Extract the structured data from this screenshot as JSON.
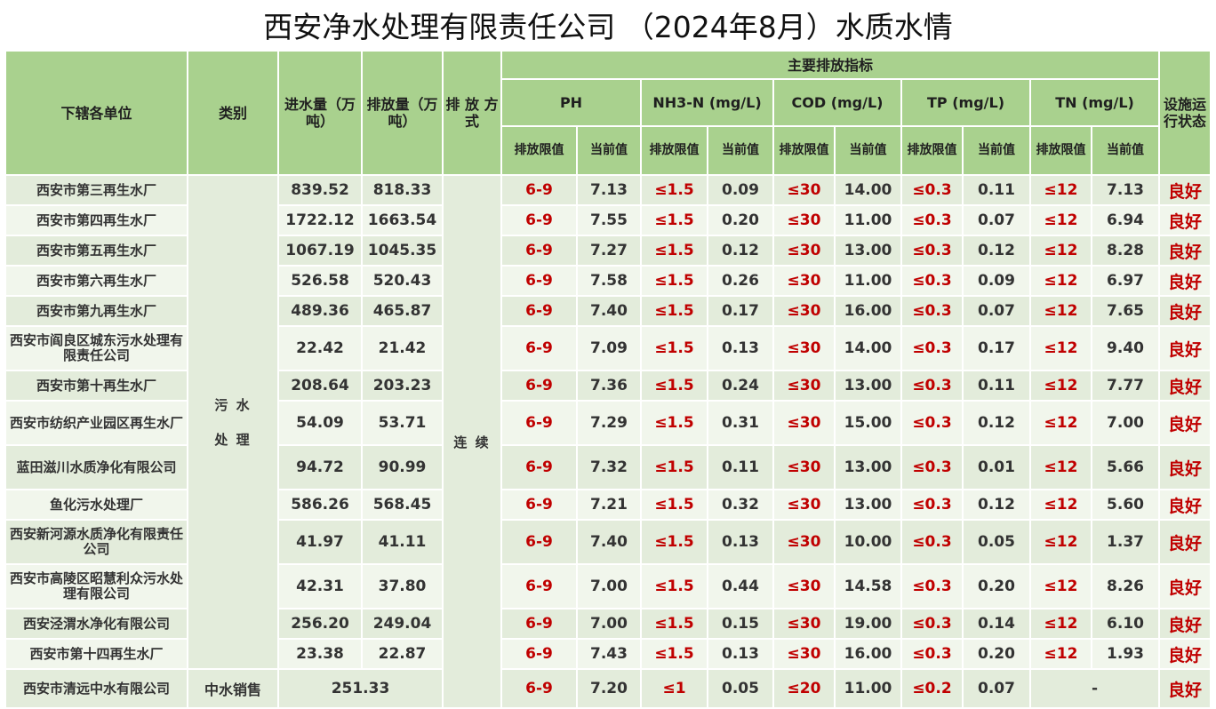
{
  "title": "西安净水处理有限责任公司 （2024年8月）水质水情",
  "headers": {
    "unit": "下辖各单位",
    "category": "类别",
    "inflow": "进水量（万吨）",
    "outflow": "排放量（万吨）",
    "method": "排 放 方 式",
    "main_indicators": "主要排放指标",
    "status": "设施运行状态",
    "ph": "PH",
    "nh3n": "NH3-N (mg/L)",
    "cod": "COD (mg/L)",
    "tp": "TP (mg/L)",
    "tn": "TN (mg/L)",
    "limit_ph": "排放限值",
    "current_ph": "当前值",
    "limit": "排放限值",
    "current": "当前值"
  },
  "category_sewage": "污 水\n\n处 理",
  "method_continuous": "连 续",
  "rows": [
    {
      "name": "西安市第三再生水厂",
      "inflow": "839.52",
      "outflow": "818.33",
      "ph_lim": "6-9",
      "ph": "7.13",
      "nh3_lim": "≤1.5",
      "nh3": "0.09",
      "cod_lim": "≤30",
      "cod": "14.00",
      "tp_lim": "≤0.3",
      "tp": "0.11",
      "tn_lim": "≤12",
      "tn": "7.13",
      "status": "良好"
    },
    {
      "name": "西安市第四再生水厂",
      "inflow": "1722.12",
      "outflow": "1663.54",
      "ph_lim": "6-9",
      "ph": "7.55",
      "nh3_lim": "≤1.5",
      "nh3": "0.20",
      "cod_lim": "≤30",
      "cod": "11.00",
      "tp_lim": "≤0.3",
      "tp": "0.07",
      "tn_lim": "≤12",
      "tn": "6.94",
      "status": "良好"
    },
    {
      "name": "西安市第五再生水厂",
      "inflow": "1067.19",
      "outflow": "1045.35",
      "ph_lim": "6-9",
      "ph": "7.27",
      "nh3_lim": "≤1.5",
      "nh3": "0.12",
      "cod_lim": "≤30",
      "cod": "13.00",
      "tp_lim": "≤0.3",
      "tp": "0.12",
      "tn_lim": "≤12",
      "tn": "8.28",
      "status": "良好"
    },
    {
      "name": "西安市第六再生水厂",
      "inflow": "526.58",
      "outflow": "520.43",
      "ph_lim": "6-9",
      "ph": "7.58",
      "nh3_lim": "≤1.5",
      "nh3": "0.26",
      "cod_lim": "≤30",
      "cod": "11.00",
      "tp_lim": "≤0.3",
      "tp": "0.09",
      "tn_lim": "≤12",
      "tn": "6.97",
      "status": "良好"
    },
    {
      "name": "西安市第九再生水厂",
      "inflow": "489.36",
      "outflow": "465.87",
      "ph_lim": "6-9",
      "ph": "7.40",
      "nh3_lim": "≤1.5",
      "nh3": "0.17",
      "cod_lim": "≤30",
      "cod": "16.00",
      "tp_lim": "≤0.3",
      "tp": "0.07",
      "tn_lim": "≤12",
      "tn": "7.65",
      "status": "良好"
    },
    {
      "name": "西安市阎良区城东污水处理有限责任公司",
      "inflow": "22.42",
      "outflow": "21.42",
      "ph_lim": "6-9",
      "ph": "7.09",
      "nh3_lim": "≤1.5",
      "nh3": "0.13",
      "cod_lim": "≤30",
      "cod": "14.00",
      "tp_lim": "≤0.3",
      "tp": "0.17",
      "tn_lim": "≤12",
      "tn": "9.40",
      "status": "良好"
    },
    {
      "name": "西安市第十再生水厂",
      "inflow": "208.64",
      "outflow": "203.23",
      "ph_lim": "6-9",
      "ph": "7.36",
      "nh3_lim": "≤1.5",
      "nh3": "0.24",
      "cod_lim": "≤30",
      "cod": "13.00",
      "tp_lim": "≤0.3",
      "tp": "0.11",
      "tn_lim": "≤12",
      "tn": "7.77",
      "status": "良好"
    },
    {
      "name": "西安市纺织产业园区再生水厂",
      "inflow": "54.09",
      "outflow": "53.71",
      "ph_lim": "6-9",
      "ph": "7.29",
      "nh3_lim": "≤1.5",
      "nh3": "0.31",
      "cod_lim": "≤30",
      "cod": "15.00",
      "tp_lim": "≤0.3",
      "tp": "0.12",
      "tn_lim": "≤12",
      "tn": "7.00",
      "status": "良好"
    },
    {
      "name": "蓝田滋川水质净化有限公司",
      "inflow": "94.72",
      "outflow": "90.99",
      "ph_lim": "6-9",
      "ph": "7.32",
      "nh3_lim": "≤1.5",
      "nh3": "0.11",
      "cod_lim": "≤30",
      "cod": "13.00",
      "tp_lim": "≤0.3",
      "tp": "0.01",
      "tn_lim": "≤12",
      "tn": "5.66",
      "status": "良好"
    },
    {
      "name": "鱼化污水处理厂",
      "inflow": "586.26",
      "outflow": "568.45",
      "ph_lim": "6-9",
      "ph": "7.21",
      "nh3_lim": "≤1.5",
      "nh3": "0.32",
      "cod_lim": "≤30",
      "cod": "13.00",
      "tp_lim": "≤0.3",
      "tp": "0.12",
      "tn_lim": "≤12",
      "tn": "5.60",
      "status": "良好"
    },
    {
      "name": "西安新河源水质净化有限责任公司",
      "inflow": "41.97",
      "outflow": "41.11",
      "ph_lim": "6-9",
      "ph": "7.40",
      "nh3_lim": "≤1.5",
      "nh3": "0.13",
      "cod_lim": "≤30",
      "cod": "10.00",
      "tp_lim": "≤0.3",
      "tp": "0.05",
      "tn_lim": "≤12",
      "tn": "1.37",
      "status": "良好"
    },
    {
      "name": "西安市高陵区昭慧利众污水处理有限公司",
      "inflow": "42.31",
      "outflow": "37.80",
      "ph_lim": "6-9",
      "ph": "7.00",
      "nh3_lim": "≤1.5",
      "nh3": "0.44",
      "cod_lim": "≤30",
      "cod": "14.58",
      "tp_lim": "≤0.3",
      "tp": "0.20",
      "tn_lim": "≤12",
      "tn": "8.26",
      "status": "良好"
    },
    {
      "name": "西安泾渭水净化有限公司",
      "inflow": "256.20",
      "outflow": "249.04",
      "ph_lim": "6-9",
      "ph": "7.00",
      "nh3_lim": "≤1.5",
      "nh3": "0.15",
      "cod_lim": "≤30",
      "cod": "19.00",
      "tp_lim": "≤0.3",
      "tp": "0.14",
      "tn_lim": "≤12",
      "tn": "6.10",
      "status": "良好"
    },
    {
      "name": "西安市第十四再生水厂",
      "inflow": "23.38",
      "outflow": "22.87",
      "ph_lim": "6-9",
      "ph": "7.43",
      "nh3_lim": "≤1.5",
      "nh3": "0.13",
      "cod_lim": "≤30",
      "cod": "16.00",
      "tp_lim": "≤0.3",
      "tp": "0.20",
      "tn_lim": "≤12",
      "tn": "1.93",
      "status": "良好"
    }
  ],
  "last_row": {
    "name": "西安市清远中水有限公司",
    "category": "中水销售",
    "volume": "251.33",
    "ph_lim": "6-9",
    "ph": "7.20",
    "nh3_lim": "≤1",
    "nh3": "0.05",
    "cod_lim": "≤20",
    "cod": "11.00",
    "tp_lim": "≤0.2",
    "tp": "0.07",
    "tn": "-",
    "status": "良好"
  }
}
